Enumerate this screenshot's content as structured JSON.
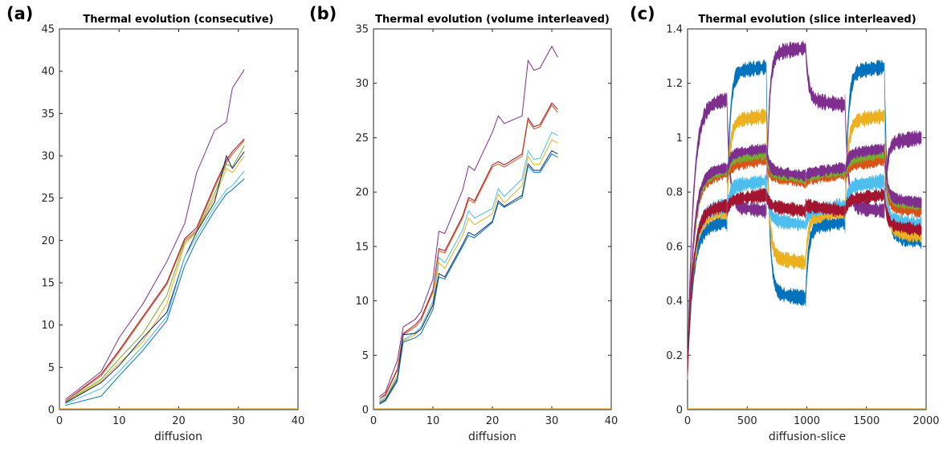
{
  "panels": [
    {
      "letter": "(a)",
      "chart_data": {
        "type": "line",
        "title": "Thermal evolution (consecutive)",
        "xlabel": "diffusion",
        "ylabel": "",
        "xlim": [
          0,
          40
        ],
        "ylim": [
          0,
          45
        ],
        "xticks": [
          0,
          10,
          20,
          30,
          40
        ],
        "yticks": [
          0,
          5,
          10,
          15,
          20,
          25,
          30,
          35,
          40,
          45
        ],
        "x": [
          1,
          7,
          10,
          14,
          18,
          21,
          23,
          26,
          28,
          29,
          31
        ],
        "series": [
          {
            "name": "purple",
            "color": "#7E2F8E",
            "values": [
              1.2,
              4.5,
              8.5,
              12.5,
              17.5,
              22,
              28,
              33,
              34,
              38,
              40.2
            ]
          },
          {
            "name": "dark-red",
            "color": "#A2142F",
            "values": [
              1.0,
              4.2,
              7.0,
              11.0,
              15.0,
              20.2,
              21.5,
              26.5,
              29.5,
              30.5,
              32.0
            ]
          },
          {
            "name": "orange",
            "color": "#D95319",
            "values": [
              1.0,
              4.0,
              6.8,
              10.8,
              14.8,
              20.0,
              21.2,
              26.2,
              29.2,
              30.2,
              31.8
            ]
          },
          {
            "name": "yellow",
            "color": "#EDB120",
            "values": [
              0.8,
              3.4,
              5.5,
              8.0,
              12.5,
              19.5,
              21.0,
              25.0,
              28.5,
              28.0,
              30.0
            ]
          },
          {
            "name": "green",
            "color": "#77AC30",
            "values": [
              0.9,
              3.6,
              6.0,
              9.0,
              13.5,
              19.8,
              21.0,
              25.5,
              29.0,
              28.7,
              31.2
            ]
          },
          {
            "name": "dark-blue",
            "color": "#0E2A6A",
            "values": [
              0.8,
              3.2,
              5.2,
              8.5,
              11.5,
              18.0,
              21.0,
              24.5,
              30.0,
              28.5,
              30.5
            ]
          },
          {
            "name": "light-blue",
            "color": "#4DBEEE",
            "values": [
              0.7,
              2.5,
              4.5,
              7.5,
              11.0,
              18.0,
              20.5,
              24.0,
              26.0,
              26.5,
              28.2
            ]
          },
          {
            "name": "blue",
            "color": "#0072BD",
            "values": [
              0.5,
              1.6,
              4.0,
              7.0,
              10.5,
              17.0,
              20.0,
              23.5,
              25.5,
              26.0,
              27.3
            ]
          }
        ]
      }
    },
    {
      "letter": "(b)",
      "chart_data": {
        "type": "line",
        "title": "Thermal evolution (volume interleaved)",
        "xlabel": "diffusion",
        "ylabel": "",
        "xlim": [
          0,
          40
        ],
        "ylim": [
          0,
          35
        ],
        "xticks": [
          0,
          10,
          20,
          30,
          40
        ],
        "yticks": [
          0,
          5,
          10,
          15,
          20,
          25,
          30,
          35
        ],
        "x": [
          1,
          2,
          4,
          5,
          7,
          8,
          10,
          11,
          12,
          15,
          16,
          17,
          20,
          21,
          22,
          25,
          26,
          27,
          28,
          30,
          31
        ],
        "series": [
          {
            "name": "purple",
            "color": "#7E2F8E",
            "values": [
              1.2,
              1.6,
              4.5,
              7.6,
              8.3,
              9.0,
              12.0,
              16.4,
              16.2,
              20.2,
              22.4,
              22.0,
              25.5,
              27.0,
              26.3,
              27.0,
              32.1,
              31.2,
              31.4,
              33.4,
              32.4
            ]
          },
          {
            "name": "dark-red",
            "color": "#A2142F",
            "values": [
              1.0,
              1.4,
              3.7,
              7.0,
              7.8,
              8.4,
              11.0,
              14.8,
              14.6,
              17.8,
              19.5,
              19.2,
              22.5,
              22.8,
              22.5,
              23.5,
              26.8,
              26.0,
              26.2,
              28.2,
              27.6
            ]
          },
          {
            "name": "orange",
            "color": "#D95319",
            "values": [
              1.0,
              1.3,
              3.6,
              6.9,
              7.6,
              8.2,
              10.8,
              14.6,
              14.4,
              17.6,
              19.3,
              19.0,
              22.3,
              22.6,
              22.3,
              23.3,
              26.6,
              25.8,
              26.0,
              28.0,
              27.3
            ]
          },
          {
            "name": "light-blue",
            "color": "#4DBEEE",
            "values": [
              0.8,
              1.1,
              3.1,
              6.4,
              7.1,
              7.6,
              10.0,
              14.0,
              13.5,
              16.5,
              18.3,
              17.6,
              18.5,
              20.3,
              19.6,
              21.2,
              23.8,
              23.0,
              23.1,
              25.5,
              25.2
            ]
          },
          {
            "name": "yellow",
            "color": "#EDB120",
            "values": [
              0.7,
              1.0,
              3.0,
              6.3,
              6.9,
              7.4,
              9.7,
              13.5,
              13.0,
              16.0,
              17.6,
              17.0,
              18.0,
              19.8,
              19.0,
              20.6,
              23.3,
              22.5,
              22.6,
              24.8,
              24.5
            ]
          },
          {
            "name": "dark-blue",
            "color": "#0E2A6A",
            "values": [
              0.6,
              0.9,
              2.8,
              6.9,
              7.0,
              7.4,
              9.6,
              12.5,
              12.2,
              15.2,
              16.3,
              16.0,
              17.3,
              19.2,
              18.7,
              19.7,
              22.6,
              22.0,
              22.0,
              23.8,
              23.5
            ]
          },
          {
            "name": "blue",
            "color": "#0072BD",
            "values": [
              0.5,
              0.8,
              2.6,
              6.2,
              6.6,
              7.0,
              9.2,
              12.2,
              12.0,
              15.0,
              16.0,
              15.8,
              17.2,
              19.0,
              18.6,
              19.5,
              22.4,
              21.8,
              21.8,
              23.5,
              23.2
            ]
          }
        ]
      }
    },
    {
      "letter": "(c)",
      "chart_data": {
        "type": "line",
        "title": "Thermal evolution (slice interleaved)",
        "xlabel": "diffusion-slice",
        "ylabel": "",
        "xlim": [
          0,
          2000
        ],
        "ylim": [
          0,
          1.4
        ],
        "xticks": [
          0,
          500,
          1000,
          1500,
          2000
        ],
        "yticks": [
          0,
          0.2,
          0.4,
          0.6,
          0.8,
          1,
          1.2,
          1.4
        ],
        "segment_bounds": [
          0,
          330,
          660,
          990,
          1320,
          1650,
          1960
        ],
        "series": [
          {
            "name": "blue",
            "color": "#0072BD",
            "band_width": 0.04,
            "levels": [
              0.68,
              1.25,
              0.42,
              0.68,
              1.25,
              0.63
            ]
          },
          {
            "name": "purple",
            "color": "#7E2F8E",
            "band_width": 0.04,
            "levels": [
              1.13,
              0.74,
              1.32,
              1.13,
              0.74,
              0.99
            ]
          },
          {
            "name": "yellow",
            "color": "#EDB120",
            "band_width": 0.04,
            "levels": [
              0.72,
              1.07,
              0.55,
              0.72,
              1.07,
              0.65
            ]
          },
          {
            "name": "light-blue",
            "color": "#4DBEEE",
            "band_width": 0.04,
            "levels": [
              0.74,
              0.83,
              0.69,
              0.74,
              0.83,
              0.69
            ]
          },
          {
            "name": "orange",
            "color": "#D95319",
            "band_width": 0.035,
            "levels": [
              0.86,
              0.91,
              0.85,
              0.86,
              0.91,
              0.74
            ]
          },
          {
            "name": "green",
            "color": "#77AC30",
            "band_width": 0.03,
            "levels": [
              0.87,
              0.93,
              0.86,
              0.87,
              0.93,
              0.76
            ]
          },
          {
            "name": "dark-purple",
            "color": "#7E2F8E",
            "band_width": 0.03,
            "levels": [
              0.88,
              0.95,
              0.87,
              0.88,
              0.95,
              0.77
            ]
          },
          {
            "name": "dark-red",
            "color": "#A2142F",
            "band_width": 0.035,
            "levels": [
              0.74,
              0.78,
              0.74,
              0.74,
              0.78,
              0.67
            ]
          }
        ]
      }
    }
  ]
}
